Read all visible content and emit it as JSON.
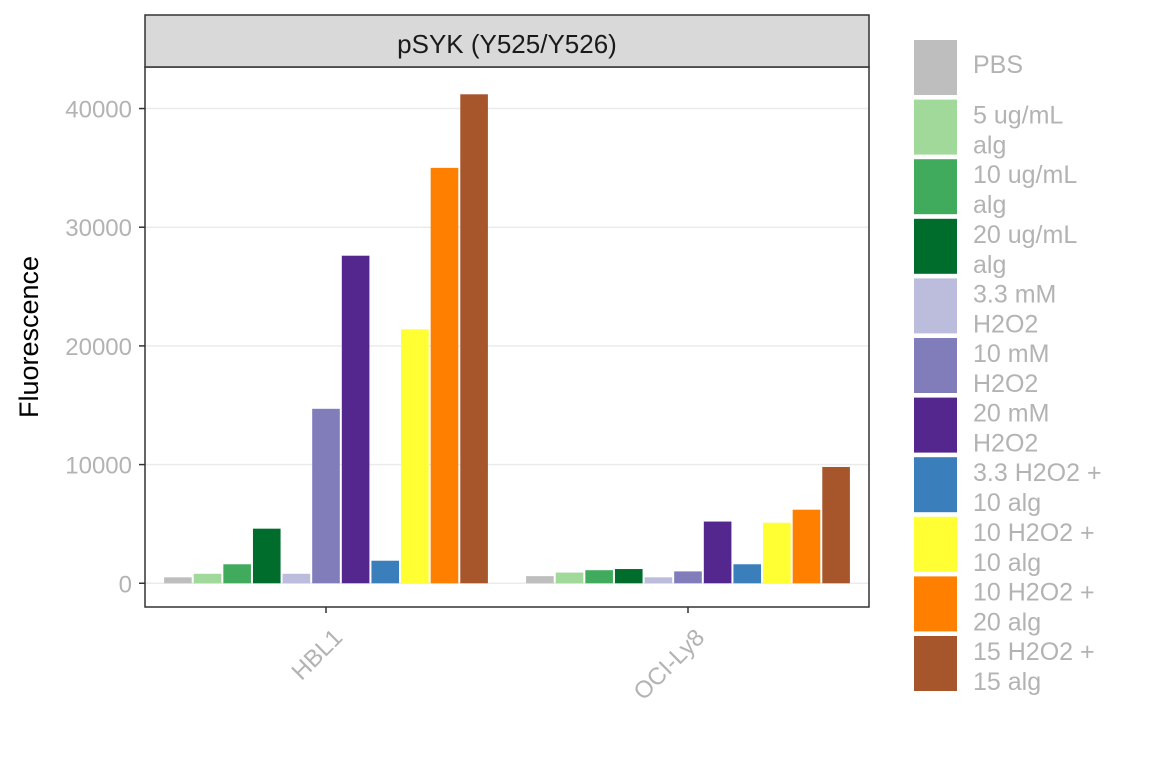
{
  "chart_data": {
    "type": "bar",
    "title": "",
    "panel_title": "pSYK (Y525/Y526)",
    "xlabel": "",
    "ylabel": "Fluorescence",
    "ylim": [
      -2000,
      43500
    ],
    "yticks": [
      0,
      10000,
      20000,
      30000,
      40000
    ],
    "ytick_labels": [
      "0",
      "10000",
      "20000",
      "30000",
      "40000"
    ],
    "categories": [
      "HBL1",
      "OCI-Ly8"
    ],
    "grid": true,
    "legend_position": "right",
    "series": [
      {
        "name": "PBS",
        "label_lines": [
          "PBS"
        ],
        "color": "#bebebe",
        "values": [
          500,
          600
        ]
      },
      {
        "name": "5 ug/mL alg",
        "label_lines": [
          "5 ug/mL",
          "alg"
        ],
        "color": "#a1d99b",
        "values": [
          800,
          900
        ]
      },
      {
        "name": "10 ug/mL alg",
        "label_lines": [
          "10 ug/mL",
          "alg"
        ],
        "color": "#41ab5d",
        "values": [
          1600,
          1100
        ]
      },
      {
        "name": "20 ug/mL alg",
        "label_lines": [
          "20 ug/mL",
          "alg"
        ],
        "color": "#006d2c",
        "values": [
          4600,
          1200
        ]
      },
      {
        "name": "3.3 mM H2O2",
        "label_lines": [
          "3.3 mM",
          "H2O2"
        ],
        "color": "#bcbddc",
        "values": [
          800,
          500
        ]
      },
      {
        "name": "10 mM H2O2",
        "label_lines": [
          "10 mM",
          "H2O2"
        ],
        "color": "#807dba",
        "values": [
          14700,
          1000
        ]
      },
      {
        "name": "20 mM H2O2",
        "label_lines": [
          "20 mM",
          "H2O2"
        ],
        "color": "#54278f",
        "values": [
          27600,
          5200
        ]
      },
      {
        "name": "3.3 H2O2 + 10 alg",
        "label_lines": [
          "3.3 H2O2 +",
          "10 alg"
        ],
        "color": "#3a7fbc",
        "values": [
          1900,
          1600
        ]
      },
      {
        "name": "10 H2O2 + 10 alg",
        "label_lines": [
          "10 H2O2 +",
          "10 alg"
        ],
        "color": "#ffff33",
        "values": [
          21400,
          5100
        ]
      },
      {
        "name": "10 H2O2 + 20 alg",
        "label_lines": [
          "10 H2O2 +",
          "20 alg"
        ],
        "color": "#ff7f00",
        "values": [
          35000,
          6200
        ]
      },
      {
        "name": "15 H2O2 + 15 alg",
        "label_lines": [
          "15 H2O2 +",
          "15 alg"
        ],
        "color": "#a6562a",
        "values": [
          41200,
          9800
        ]
      }
    ]
  }
}
